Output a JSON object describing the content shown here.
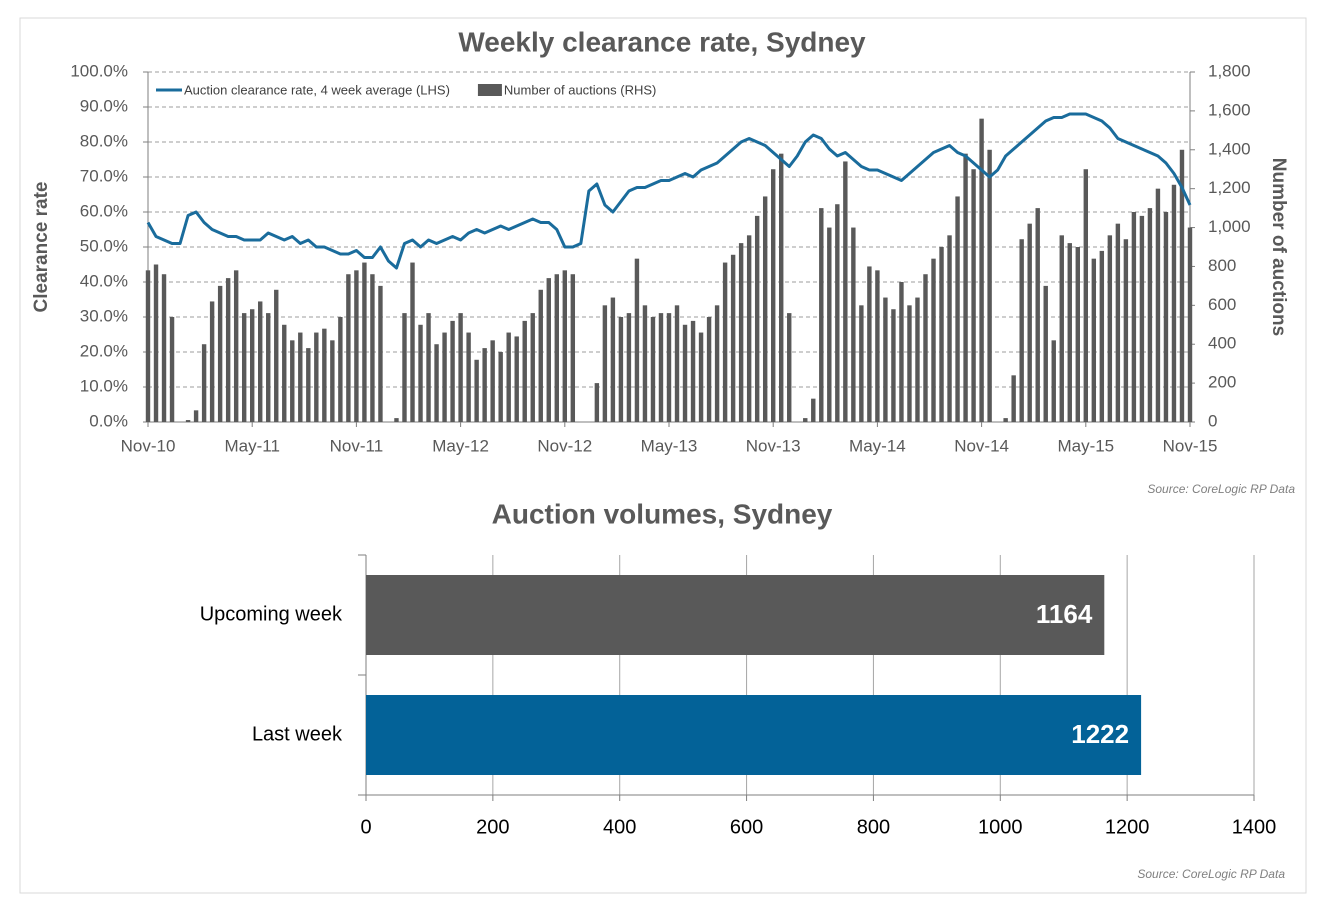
{
  "chart_data": [
    {
      "type": "combo",
      "title": "Weekly clearance rate, Sydney",
      "y_label": "Clearance rate",
      "y2_label": "Number of auctions",
      "source": "Source: CoreLogic  RP Data",
      "categories": [
        "Nov-10",
        null,
        null,
        null,
        null,
        null,
        null,
        null,
        null,
        null,
        null,
        null,
        null,
        "May-11",
        null,
        null,
        null,
        null,
        null,
        null,
        null,
        null,
        null,
        null,
        null,
        null,
        "Nov-11",
        null,
        null,
        null,
        null,
        null,
        null,
        null,
        null,
        null,
        null,
        null,
        null,
        "May-12",
        null,
        null,
        null,
        null,
        null,
        null,
        null,
        null,
        null,
        null,
        null,
        null,
        "Nov-12",
        null,
        null,
        null,
        null,
        null,
        null,
        null,
        null,
        null,
        null,
        null,
        null,
        "May-13",
        null,
        null,
        null,
        null,
        null,
        null,
        null,
        null,
        null,
        null,
        null,
        null,
        "Nov-13",
        null,
        null,
        null,
        null,
        null,
        null,
        null,
        null,
        null,
        null,
        null,
        null,
        "May-14",
        null,
        null,
        null,
        null,
        null,
        null,
        null,
        null,
        null,
        null,
        null,
        null,
        "Nov-14",
        null,
        null,
        null,
        null,
        null,
        null,
        null,
        null,
        null,
        null,
        null,
        null,
        "May-15",
        null,
        null,
        null,
        null,
        null,
        null,
        null,
        null,
        null,
        null,
        null,
        null,
        "Nov-15"
      ],
      "series": [
        {
          "name": "Auction clearance rate, 4 week average (LHS)",
          "type": "line",
          "axis": "y",
          "color": "#1a6c9c",
          "values": [
            57,
            53,
            52,
            51,
            51,
            59,
            60,
            57,
            55,
            54,
            53,
            53,
            52,
            52,
            52,
            54,
            53,
            52,
            53,
            51,
            52,
            50,
            50,
            49,
            48,
            48,
            49,
            47,
            47,
            50,
            46,
            44,
            51,
            52,
            50,
            52,
            51,
            52,
            53,
            52,
            54,
            55,
            54,
            55,
            56,
            55,
            56,
            57,
            58,
            57,
            57,
            55,
            50,
            50,
            51,
            66,
            68,
            62,
            60,
            63,
            66,
            67,
            67,
            68,
            69,
            69,
            70,
            71,
            70,
            72,
            73,
            74,
            76,
            78,
            80,
            81,
            80,
            79,
            77,
            75,
            73,
            76,
            80,
            82,
            81,
            78,
            76,
            77,
            75,
            73,
            72,
            72,
            71,
            70,
            69,
            71,
            73,
            75,
            77,
            78,
            79,
            77,
            76,
            74,
            72,
            70,
            72,
            76,
            78,
            80,
            82,
            84,
            86,
            87,
            87,
            88,
            88,
            88,
            87,
            86,
            84,
            81,
            80,
            79,
            78,
            77,
            76,
            74,
            71,
            67,
            62
          ]
        },
        {
          "name": "Number of auctions (RHS)",
          "type": "bar",
          "axis": "y2",
          "color": "#595959",
          "values": [
            780,
            810,
            760,
            540,
            0,
            10,
            60,
            400,
            620,
            700,
            740,
            780,
            560,
            580,
            620,
            560,
            680,
            500,
            420,
            460,
            380,
            460,
            480,
            420,
            540,
            760,
            780,
            820,
            760,
            700,
            0,
            20,
            560,
            820,
            500,
            560,
            400,
            460,
            520,
            560,
            460,
            320,
            380,
            420,
            360,
            460,
            440,
            520,
            560,
            680,
            740,
            760,
            780,
            760,
            0,
            0,
            200,
            600,
            640,
            540,
            560,
            840,
            600,
            540,
            560,
            560,
            600,
            500,
            520,
            460,
            540,
            600,
            820,
            860,
            920,
            960,
            1060,
            1160,
            1300,
            1380,
            560,
            0,
            20,
            120,
            1100,
            1000,
            1120,
            1340,
            1000,
            600,
            800,
            780,
            640,
            580,
            720,
            600,
            640,
            760,
            840,
            900,
            960,
            1160,
            1380,
            1300,
            1560,
            1400,
            0,
            20,
            240,
            940,
            1020,
            1100,
            700,
            420,
            960,
            920,
            900,
            1300,
            840,
            880,
            960,
            1020,
            940,
            1080,
            1060,
            1100,
            1200,
            1080,
            1220,
            1400,
            1000
          ]
        }
      ],
      "ylim": [
        0,
        100
      ],
      "yticks": [
        {
          "value": 0,
          "label": "0.0%"
        },
        {
          "value": 10,
          "label": "10.0%"
        },
        {
          "value": 20,
          "label": "20.0%"
        },
        {
          "value": 30,
          "label": "30.0%"
        },
        {
          "value": 40,
          "label": "40.0%"
        },
        {
          "value": 50,
          "label": "50.0%"
        },
        {
          "value": 60,
          "label": "60.0%"
        },
        {
          "value": 70,
          "label": "70.0%"
        },
        {
          "value": 80,
          "label": "80.0%"
        },
        {
          "value": 90,
          "label": "90.0%"
        },
        {
          "value": 100,
          "label": "100.0%"
        }
      ],
      "y2lim": [
        0,
        1800
      ],
      "y2ticks": [
        0,
        200,
        400,
        600,
        800,
        {
          "value": 1000,
          "label": "1,000"
        },
        {
          "value": 1200,
          "label": "1,200"
        },
        {
          "value": 1400,
          "label": "1,400"
        },
        {
          "value": 1600,
          "label": "1,600"
        },
        {
          "value": 1800,
          "label": "1,800"
        }
      ],
      "grid": true,
      "legend": "top-left"
    },
    {
      "type": "hbar",
      "title": "Auction volumes, Sydney",
      "source": "Source: CoreLogic  RP Data",
      "categories": [
        "Upcoming week",
        "Last week"
      ],
      "values": [
        1164,
        1222
      ],
      "colors": [
        "#595959",
        "#036298"
      ],
      "xlim": [
        0,
        1400
      ],
      "xticks": [
        0,
        200,
        400,
        600,
        800,
        1000,
        1200,
        1400
      ],
      "grid": true
    }
  ]
}
